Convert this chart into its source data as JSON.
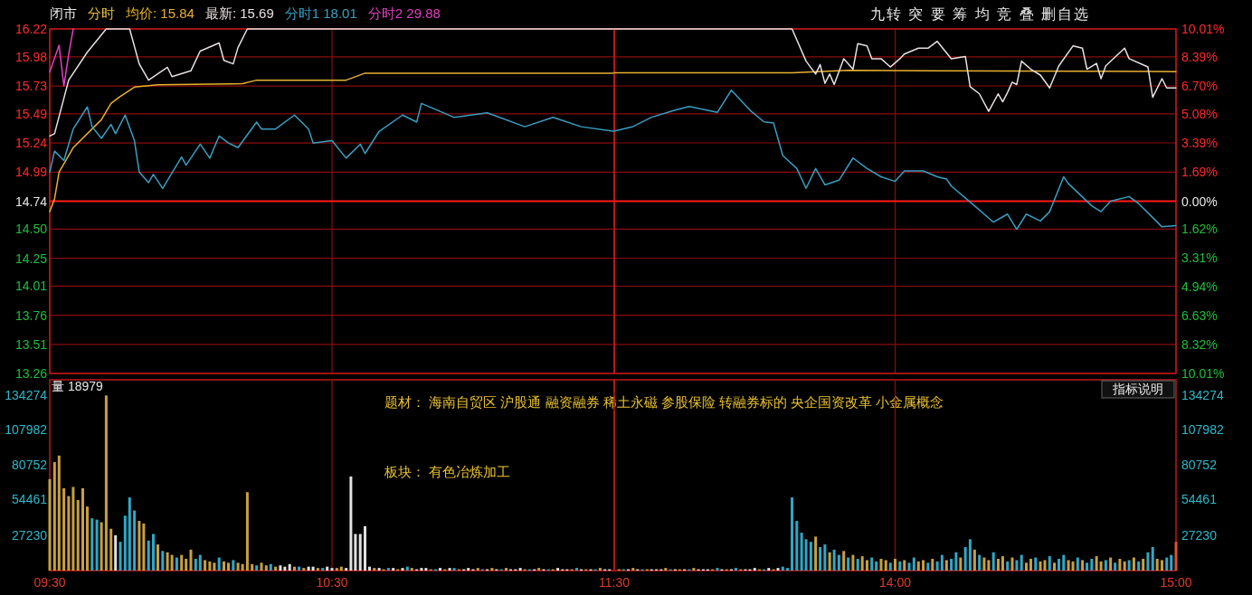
{
  "chart_data": [
    {
      "type": "line",
      "xlim": [
        9.5,
        11.5
      ],
      "xticks": [
        {
          "value": 9.5,
          "label": null
        },
        {
          "value": 10.5,
          "label": null
        },
        {
          "value": 11.5,
          "label": null
        }
      ],
      "ylim": [
        13.26,
        16.22
      ],
      "yticks": [
        16.22,
        15.98,
        15.73,
        15.49,
        15.24,
        14.99,
        14.74,
        {
          "value": 14.5,
          "label": "14.50"
        },
        14.25,
        14.01,
        13.76,
        13.51,
        13.26
      ],
      "tick_labels": "y",
      "grid": true,
      "legend": "top",
      "ref_lines": [
        {
          "axis": "y",
          "value": 14.74,
          "color": "#ff1a1a"
        }
      ],
      "annotations": [
        "闭市",
        "分时",
        "九转 突 要 筹 均 竞 叠 删自选"
      ],
      "series": [
        {
          "name": "均价: 15.84",
          "color": "#e8b030",
          "x": [
            9.5,
            9.517,
            9.533,
            9.583,
            9.683,
            9.717,
            9.75,
            9.8,
            9.883,
            10.183,
            10.233,
            10.55,
            10.617,
            11.5
          ],
          "values": [
            14.65,
            14.76,
            14.99,
            15.2,
            15.44,
            15.58,
            15.64,
            15.72,
            15.74,
            15.75,
            15.78,
            15.78,
            15.84,
            15.84
          ]
        },
        {
          "name": "最新: 15.69",
          "color": "#e8e0e0",
          "x": [
            9.5,
            9.517,
            9.567,
            9.633,
            9.7,
            9.783,
            9.817,
            9.85,
            9.917,
            9.933,
            10.0,
            10.033,
            10.1,
            10.117,
            10.15,
            10.167,
            10.2,
            11.5
          ],
          "values": [
            15.3,
            15.32,
            15.78,
            16.02,
            16.22,
            16.22,
            15.92,
            15.78,
            15.89,
            15.81,
            15.86,
            16.03,
            16.1,
            15.95,
            15.92,
            16.06,
            16.22,
            16.22
          ]
        },
        {
          "name": "分时1 18.01",
          "color": "#3a9ec0",
          "x": [
            9.5,
            9.517,
            9.55,
            9.583,
            9.633,
            9.65,
            9.683,
            9.717,
            9.733,
            9.767,
            9.8,
            9.817,
            9.85,
            9.867,
            9.9,
            9.967,
            9.983,
            10.033,
            10.067,
            10.1,
            10.133,
            10.167,
            10.233,
            10.25,
            10.3,
            10.367,
            10.417,
            10.433,
            10.5,
            10.55,
            10.6,
            10.617,
            10.667,
            10.75,
            10.8,
            10.817,
            10.933,
            11.05,
            11.183,
            11.283,
            11.383,
            11.5
          ],
          "values": [
            14.99,
            15.17,
            15.09,
            15.36,
            15.55,
            15.38,
            15.28,
            15.4,
            15.32,
            15.48,
            15.26,
            14.99,
            14.9,
            14.97,
            14.85,
            15.12,
            15.05,
            15.23,
            15.11,
            15.3,
            15.24,
            15.2,
            15.42,
            15.36,
            15.36,
            15.48,
            15.36,
            15.24,
            15.26,
            15.11,
            15.23,
            15.15,
            15.34,
            15.48,
            15.42,
            15.58,
            15.46,
            15.5,
            15.38,
            15.46,
            15.38,
            15.34
          ]
        },
        {
          "name": "分时2 29.88",
          "color": "#e040c0",
          "x": [
            9.5,
            9.533,
            9.55,
            9.567,
            9.583
          ],
          "values": [
            15.85,
            16.08,
            15.73,
            16.0,
            16.22
          ]
        }
      ]
    },
    {
      "type": "line",
      "xlim": [
        13,
        15
      ],
      "xticks": [
        {
          "value": 14,
          "label": null
        },
        {
          "value": 15,
          "label": null
        }
      ],
      "y2lim": [
        -10.01,
        10.01
      ],
      "y2ticks": [
        {
          "value": 10.01,
          "label": "10.01%"
        },
        {
          "value": 8.39,
          "label": "8.39%"
        },
        {
          "value": 6.7,
          "label": "6.70%"
        },
        {
          "value": 5.08,
          "label": "5.08%"
        },
        {
          "value": 3.39,
          "label": "3.39%"
        },
        {
          "value": 1.69,
          "label": "1.69%"
        },
        {
          "value": 0,
          "label": "0.00%"
        },
        {
          "value": -1.62,
          "label": "1.62%"
        },
        {
          "value": -3.31,
          "label": "3.31%"
        },
        {
          "value": -4.94,
          "label": "4.94%"
        },
        {
          "value": -6.63,
          "label": "6.63%"
        },
        {
          "value": -8.32,
          "label": "8.32%"
        },
        {
          "value": -10.01,
          "label": "10.01%"
        }
      ],
      "tick_labels": "y",
      "grid": true,
      "ref_lines": [
        {
          "axis": "y2",
          "value": 0,
          "color": "#ff1a1a"
        }
      ],
      "series": [
        {
          "axis": "y2",
          "color": "#e8b030",
          "x": [
            13.0,
            13.633,
            13.833,
            15
          ],
          "values": [
            7.46,
            7.46,
            7.6,
            7.53
          ]
        },
        {
          "axis": "y2",
          "color": "#e8e0e0",
          "x": [
            13.0,
            13.633,
            13.683,
            13.717,
            13.733,
            13.75,
            13.767,
            13.783,
            13.817,
            13.85,
            13.867,
            13.9,
            13.917,
            13.95,
            13.983,
            14.017,
            14.033,
            14.083,
            14.117,
            14.15,
            14.2,
            14.25,
            14.267,
            14.3,
            14.333,
            14.367,
            14.383,
            14.4,
            14.417,
            14.433,
            14.45,
            14.483,
            14.517,
            14.55,
            14.583,
            14.633,
            14.667,
            14.683,
            14.717,
            14.733,
            14.75,
            14.817,
            14.833,
            14.9,
            14.917,
            14.95,
            14.967,
            15
          ],
          "values": [
            10.01,
            10.01,
            8.14,
            7.39,
            7.94,
            6.85,
            7.39,
            6.78,
            8.28,
            7.67,
            9.16,
            9.02,
            8.28,
            8.28,
            7.8,
            8.28,
            8.55,
            8.89,
            8.89,
            9.29,
            8.28,
            8.41,
            6.65,
            6.24,
            5.22,
            6.24,
            5.77,
            6.31,
            6.92,
            6.78,
            8.14,
            7.67,
            7.33,
            6.58,
            7.87,
            9.02,
            8.89,
            7.67,
            8.01,
            7.12,
            7.87,
            8.89,
            8.28,
            7.8,
            6.04,
            7.12,
            6.58,
            6.58
          ]
        },
        {
          "axis": "y2",
          "color": "#3a9ec0",
          "x": [
            13.0,
            13.067,
            13.133,
            13.217,
            13.267,
            13.367,
            13.417,
            13.483,
            13.533,
            13.567,
            13.6,
            13.65,
            13.683,
            13.717,
            13.75,
            13.8,
            13.85,
            13.9,
            13.95,
            14.0,
            14.033,
            14.1,
            14.15,
            14.183,
            14.2,
            14.283,
            14.35,
            14.4,
            14.433,
            14.467,
            14.517,
            14.55,
            14.6,
            14.617,
            14.7,
            14.733,
            14.767,
            14.833,
            14.867,
            14.95,
            15
          ],
          "values": [
            4.07,
            4.34,
            4.88,
            5.29,
            5.5,
            5.16,
            6.45,
            5.29,
            4.61,
            4.55,
            2.65,
            1.9,
            0.75,
            1.9,
            0.95,
            1.22,
            2.51,
            1.9,
            1.42,
            1.15,
            1.76,
            1.76,
            1.42,
            1.29,
            0.88,
            -0.27,
            -1.22,
            -0.75,
            -1.63,
            -0.75,
            -1.15,
            -0.61,
            1.42,
            1.02,
            -0.27,
            -0.61,
            0,
            0.27,
            -0.14,
            -1.49,
            -1.42
          ]
        }
      ]
    },
    {
      "type": "bar",
      "xlim": [
        9.5,
        11.5
      ],
      "xticks": [
        {
          "value": 9.5,
          "label": "09:30"
        },
        {
          "value": 10.5,
          "label": "10:30"
        },
        {
          "value": 11.5,
          "label": "11:30"
        }
      ],
      "ylim": [
        0,
        146000
      ],
      "yticks": [
        27230,
        54461,
        80752,
        107982,
        134274
      ],
      "ref_lines": [
        {
          "axis": "x",
          "value": 10.5,
          "color": "#8a0d0d"
        }
      ],
      "annotations": [
        "量 18979",
        "题材：  海南自贸区  沪股通  融资融券  稀土永磁  参股保险  转融券标的  央企国资改革  小金属概念",
        "板块：  有色冶炼加工"
      ],
      "x": [
        9.5,
        9.517,
        9.533,
        9.55,
        9.567,
        9.583,
        9.6,
        9.617,
        9.633,
        9.65,
        9.667,
        9.683,
        9.7,
        9.717,
        9.733,
        9.75,
        9.767,
        9.783,
        9.8,
        9.817,
        9.833,
        9.85,
        9.867,
        9.883,
        9.9,
        9.917,
        9.933,
        9.95,
        9.967,
        9.983,
        10.0,
        10.017,
        10.033,
        10.05,
        10.067,
        10.083,
        10.1,
        10.117,
        10.133,
        10.15,
        10.167,
        10.183,
        10.2,
        10.217,
        10.233,
        10.25,
        10.267,
        10.283,
        10.3,
        10.317,
        10.333,
        10.35,
        10.367,
        10.383,
        10.4,
        10.417,
        10.433,
        10.45,
        10.467,
        10.483,
        10.5,
        10.517,
        10.533,
        10.55,
        10.567,
        10.583,
        10.6,
        10.617,
        10.633,
        10.65,
        10.667,
        10.683,
        10.7,
        10.717,
        10.733,
        10.75,
        10.767,
        10.783,
        10.8,
        10.817,
        10.833,
        10.85,
        10.867,
        10.883,
        10.9,
        10.917,
        10.933,
        10.95,
        10.967,
        10.983,
        11.0,
        11.017,
        11.033,
        11.05,
        11.067,
        11.083,
        11.1,
        11.117,
        11.133,
        11.15,
        11.167,
        11.183,
        11.2,
        11.217,
        11.233,
        11.25,
        11.267,
        11.283,
        11.3,
        11.317,
        11.333,
        11.35,
        11.367,
        11.383,
        11.4,
        11.417,
        11.433,
        11.45,
        11.467,
        11.483
      ],
      "values": [
        70000,
        83000,
        88000,
        63000,
        57000,
        64000,
        54000,
        63000,
        49000,
        40000,
        39000,
        37000,
        134000,
        32000,
        27000,
        22000,
        42000,
        56000,
        46000,
        38000,
        36000,
        23000,
        28000,
        20000,
        15000,
        14000,
        12000,
        10000,
        12000,
        9000,
        16000,
        9000,
        12000,
        8000,
        7000,
        6000,
        10000,
        7000,
        6000,
        8000,
        6000,
        5000,
        60000,
        5000,
        4000,
        6000,
        4000,
        5000,
        3000,
        4000,
        3000,
        5000,
        3000,
        3000,
        2000,
        3000,
        3000,
        2000,
        2000,
        3000,
        2000,
        2000,
        3000,
        2000,
        72000,
        28000,
        28000,
        34000,
        3000,
        2000,
        2000,
        1000,
        2000,
        2000,
        1000,
        2000,
        3000,
        2000,
        1000,
        2000,
        2000,
        1000,
        1000,
        2000,
        1000,
        2000,
        2000,
        1000,
        1000,
        2000,
        1000,
        2000,
        1000,
        1000,
        2000,
        1000,
        1000,
        2000,
        1000,
        1000,
        2000,
        1000,
        1000,
        1000,
        2000,
        1000,
        1000,
        1000,
        2000,
        1000,
        1000,
        1000,
        2000,
        1000,
        1000,
        1000,
        1000,
        2000,
        1000,
        1000
      ],
      "colors": [
        "#c8a040",
        "#c8a040",
        "#c8a040",
        "#c8a040",
        "#c8a040",
        "#c8a040",
        "#c8a040",
        "#c8a040",
        "#c8a040",
        "#2fa8c8",
        "#2fa8c8",
        "#c8a040",
        "#c8a040",
        "#c8a040",
        "#e0e0e0",
        "#2fa8c8",
        "#2fa8c8",
        "#2fa8c8",
        "#2fa8c8",
        "#c8a040",
        "#c8a040",
        "#2fa8c8",
        "#2fa8c8",
        "#c8a040",
        "#2fa8c8",
        "#c8a040",
        "#c8a040",
        "#2fa8c8",
        "#c8a040",
        "#c8a040",
        "#c8a040",
        "#2fa8c8",
        "#2fa8c8",
        "#c8a040",
        "#c8a040",
        "#c8a040",
        "#2fa8c8",
        "#c8a040",
        "#c8a040",
        "#2fa8c8",
        "#c8a040",
        "#c8a040",
        "#c8a040",
        "#c8a040",
        "#2fa8c8",
        "#c8a040",
        "#c8a040",
        "#2fa8c8",
        "#c8a040",
        "#e0e0e0",
        "#e0e0e0",
        "#e0e0e0",
        "#c8a040",
        "#2fa8c8",
        "#c8a040",
        "#e0e0e0",
        "#e0e0e0",
        "#c8a040",
        "#2fa8c8",
        "#e0e0e0",
        "#e0e0e0",
        "#c8a040",
        "#c8a040",
        "#e0e0e0",
        "#e0e0e0",
        "#e0e0e0",
        "#e0e0e0",
        "#e0e0e0",
        "#e0e0e0",
        "#c8a040",
        "#e0e0e0",
        "#c8a040",
        "#2fa8c8",
        "#e0e0e0",
        "#c8a040",
        "#e0e0e0",
        "#2fa8c8",
        "#c8a040",
        "#e0e0e0",
        "#e0e0e0",
        "#e0e0e0",
        "#c8a040",
        "#2fa8c8",
        "#e0e0e0",
        "#c8a040",
        "#e0e0e0",
        "#2fa8c8",
        "#c8a040",
        "#e0e0e0",
        "#e0e0e0",
        "#e0e0e0",
        "#c8a040",
        "#2fa8c8",
        "#e0e0e0",
        "#c8a040",
        "#e0e0e0",
        "#2fa8c8",
        "#c8a040",
        "#e0e0e0",
        "#e0e0e0",
        "#e0e0e0",
        "#c8a040",
        "#2fa8c8",
        "#e0e0e0",
        "#c8a040",
        "#e0e0e0",
        "#2fa8c8",
        "#c8a040",
        "#e0e0e0",
        "#e0e0e0",
        "#e0e0e0",
        "#c8a040",
        "#2fa8c8",
        "#e0e0e0",
        "#c8a040",
        "#e0e0e0",
        "#2fa8c8",
        "#c8a040",
        "#e0e0e0",
        "#e0e0e0"
      ]
    },
    {
      "type": "bar",
      "xlim": [
        13,
        15
      ],
      "xticks": [
        {
          "value": 14,
          "label": "14:00"
        },
        {
          "value": 15,
          "label": "15:00"
        }
      ],
      "y2lim": [
        0,
        146000
      ],
      "y2ticks": [
        27230,
        54461,
        80752,
        107982,
        134274
      ],
      "ref_lines": [
        {
          "axis": "x",
          "value": 14,
          "color": "#8a0d0d"
        }
      ],
      "annotations": [
        "指标说明"
      ],
      "series": [
        {
          "axis": "y2",
          "values": [
            1000,
            1000,
            1000,
            2000,
            1000,
            1000,
            1000,
            1000,
            1000,
            1000,
            2000,
            1000,
            1000,
            1000,
            1000,
            1000,
            2000,
            1000,
            1000,
            1000,
            1000,
            2000,
            1000,
            1000,
            1000,
            2000,
            1000,
            1000,
            1000,
            2000,
            1000,
            1000,
            2000,
            1000,
            2000,
            3000,
            2000,
            56000,
            38000,
            29000,
            24000,
            22000,
            26000,
            18000,
            20000,
            14000,
            16000,
            12000,
            15000,
            10000,
            12000,
            9000,
            11000,
            8000,
            10000,
            7000,
            9000,
            8000,
            6000,
            9000,
            7000,
            8000,
            6000,
            10000,
            7000,
            8000,
            6000,
            9000,
            7000,
            12000,
            8000,
            9000,
            14000,
            10000,
            18000,
            24000,
            16000,
            12000,
            10000,
            8000,
            14000,
            9000,
            11000,
            7000,
            10000,
            8000,
            12000,
            6000,
            9000,
            10000,
            7000,
            8000,
            11000,
            6000,
            9000,
            12000,
            8000,
            7000,
            10000,
            8000,
            6000,
            9000,
            11000,
            7000,
            8000,
            10000,
            6000,
            9000,
            7000,
            8000,
            10000,
            7000,
            9000,
            14000,
            18000,
            9000,
            8000,
            10000,
            12000,
            22000
          ]
        }
      ],
      "x": [
        13.017,
        13.033,
        13.05,
        13.067,
        13.083,
        13.1,
        13.117,
        13.133,
        13.15,
        13.167,
        13.183,
        13.2,
        13.217,
        13.233,
        13.25,
        13.267,
        13.283,
        13.3,
        13.317,
        13.333,
        13.35,
        13.367,
        13.383,
        13.4,
        13.417,
        13.433,
        13.45,
        13.467,
        13.483,
        13.5,
        13.517,
        13.533,
        13.55,
        13.567,
        13.583,
        13.6,
        13.617,
        13.633,
        13.65,
        13.667,
        13.683,
        13.7,
        13.717,
        13.733,
        13.75,
        13.767,
        13.783,
        13.8,
        13.817,
        13.833,
        13.85,
        13.867,
        13.883,
        13.9,
        13.917,
        13.933,
        13.95,
        13.967,
        13.983,
        14.0,
        14.017,
        14.033,
        14.05,
        14.067,
        14.083,
        14.1,
        14.117,
        14.133,
        14.15,
        14.167,
        14.183,
        14.2,
        14.217,
        14.233,
        14.25,
        14.267,
        14.283,
        14.3,
        14.317,
        14.333,
        14.35,
        14.367,
        14.383,
        14.4,
        14.417,
        14.433,
        14.45,
        14.467,
        14.483,
        14.5,
        14.517,
        14.533,
        14.55,
        14.567,
        14.583,
        14.6,
        14.617,
        14.633,
        14.65,
        14.667,
        14.683,
        14.7,
        14.717,
        14.733,
        14.75,
        14.767,
        14.783,
        14.8,
        14.817,
        14.833,
        14.85,
        14.867,
        14.883,
        14.9,
        14.917,
        14.933,
        14.95,
        14.967,
        14.983,
        15.0
      ],
      "colors": [
        "#c8a040",
        "#2fa8c8",
        "#e0e0e0",
        "#c8a040",
        "#e0e0e0",
        "#2fa8c8",
        "#c8a040",
        "#e0e0e0",
        "#e0e0e0",
        "#e0e0e0",
        "#c8a040",
        "#2fa8c8",
        "#e0e0e0",
        "#c8a040",
        "#e0e0e0",
        "#2fa8c8",
        "#c8a040",
        "#e0e0e0",
        "#e0e0e0",
        "#e0e0e0",
        "#c8a040",
        "#2fa8c8",
        "#e0e0e0",
        "#c8a040",
        "#e0e0e0",
        "#2fa8c8",
        "#c8a040",
        "#e0e0e0",
        "#e0e0e0",
        "#e0e0e0",
        "#c8a040",
        "#2fa8c8",
        "#e0e0e0",
        "#c8a040",
        "#e0e0e0",
        "#2fa8c8",
        "#2fa8c8",
        "#2fa8c8",
        "#2fa8c8",
        "#2fa8c8",
        "#2fa8c8",
        "#2fa8c8",
        "#c8a040",
        "#2fa8c8",
        "#2fa8c8",
        "#c8a040",
        "#2fa8c8",
        "#2fa8c8",
        "#c8a040",
        "#2fa8c8",
        "#c8a040",
        "#2fa8c8",
        "#c8a040",
        "#c8a040",
        "#2fa8c8",
        "#2fa8c8",
        "#c8a040",
        "#c8a040",
        "#2fa8c8",
        "#c8a040",
        "#2fa8c8",
        "#c8a040",
        "#2fa8c8",
        "#2fa8c8",
        "#c8a040",
        "#c8a040",
        "#2fa8c8",
        "#c8a040",
        "#2fa8c8",
        "#2fa8c8",
        "#c8a040",
        "#2fa8c8",
        "#2fa8c8",
        "#c8a040",
        "#2fa8c8",
        "#2fa8c8",
        "#c8a040",
        "#2fa8c8",
        "#c8a040",
        "#c8a040",
        "#2fa8c8",
        "#c8a040",
        "#c8a040",
        "#2fa8c8",
        "#c8a040",
        "#2fa8c8",
        "#2fa8c8",
        "#c8a040",
        "#c8a040",
        "#2fa8c8",
        "#c8a040",
        "#c8a040",
        "#2fa8c8",
        "#c8a040",
        "#2fa8c8",
        "#2fa8c8",
        "#c8a040",
        "#c8a040",
        "#2fa8c8",
        "#c8a040",
        "#2fa8c8",
        "#2fa8c8",
        "#c8a040",
        "#c8a040",
        "#2fa8c8",
        "#c8a040",
        "#2fa8c8",
        "#c8a040",
        "#c8a040",
        "#2fa8c8",
        "#c8a040",
        "#2fa8c8",
        "#c8a040",
        "#2fa8c8",
        "#2fa8c8",
        "#c8a040",
        "#c8a040",
        "#2fa8c8",
        "#2fa8c8",
        "#e05030"
      ]
    }
  ]
}
